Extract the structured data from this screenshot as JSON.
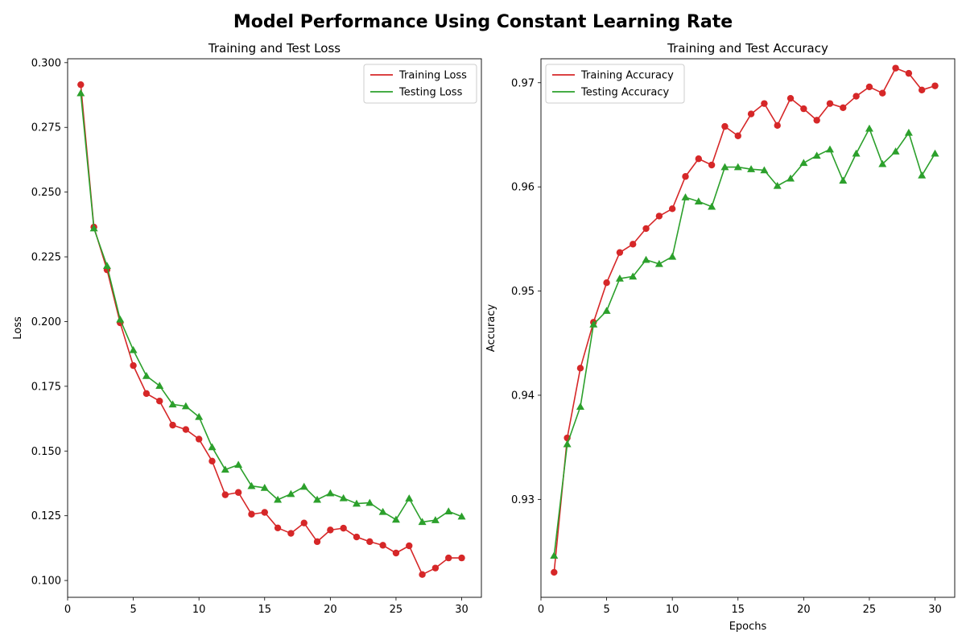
{
  "figure": {
    "suptitle": "Model Performance Using Constant Learning Rate"
  },
  "colors": {
    "training": "#d62728",
    "testing": "#2ca02c"
  },
  "chart_data": [
    {
      "type": "line",
      "title": "Training and Test Loss",
      "xlabel": "",
      "ylabel": "Loss",
      "xlim": [
        0,
        31.5
      ],
      "ylim": [
        0.0935,
        0.3015
      ],
      "xticks": [
        0,
        5,
        10,
        15,
        20,
        25,
        30
      ],
      "yticks": [
        0.1,
        0.125,
        0.15,
        0.175,
        0.2,
        0.225,
        0.25,
        0.275,
        0.3
      ],
      "ytick_labels": [
        "0.100",
        "0.125",
        "0.150",
        "0.175",
        "0.200",
        "0.225",
        "0.250",
        "0.275",
        "0.300"
      ],
      "legend_position": "top-right",
      "grid": false,
      "x": [
        1,
        2,
        3,
        4,
        5,
        6,
        7,
        8,
        9,
        10,
        11,
        12,
        13,
        14,
        15,
        16,
        17,
        18,
        19,
        20,
        21,
        22,
        23,
        24,
        25,
        26,
        27,
        28,
        29,
        30
      ],
      "series": [
        {
          "name": "Training Loss",
          "marker": "circle",
          "color": "#d62728",
          "values": [
            0.2915,
            0.2365,
            0.22,
            0.1995,
            0.183,
            0.1722,
            0.1693,
            0.16,
            0.1583,
            0.1546,
            0.1461,
            0.1331,
            0.134,
            0.1256,
            0.1263,
            0.1203,
            0.1182,
            0.1222,
            0.115,
            0.1195,
            0.1202,
            0.1168,
            0.115,
            0.1136,
            0.1106,
            0.1134,
            0.1023,
            0.1048,
            0.1087,
            0.1087
          ]
        },
        {
          "name": "Testing Loss",
          "marker": "triangle",
          "color": "#2ca02c",
          "values": [
            0.2882,
            0.236,
            0.2215,
            0.2008,
            0.189,
            0.179,
            0.1752,
            0.168,
            0.1673,
            0.1632,
            0.1515,
            0.1428,
            0.1447,
            0.1365,
            0.1358,
            0.1312,
            0.1334,
            0.1362,
            0.1312,
            0.1337,
            0.1318,
            0.1297,
            0.13,
            0.1265,
            0.1235,
            0.1317,
            0.1226,
            0.1233,
            0.1267,
            0.1247
          ]
        }
      ]
    },
    {
      "type": "line",
      "title": "Training and Test Accuracy",
      "xlabel": "Epochs",
      "ylabel": "Accuracy",
      "xlim": [
        0,
        31.5
      ],
      "ylim": [
        0.9206,
        0.9723
      ],
      "xticks": [
        0,
        5,
        10,
        15,
        20,
        25,
        30
      ],
      "yticks": [
        0.93,
        0.94,
        0.95,
        0.96,
        0.97
      ],
      "ytick_labels": [
        "0.93",
        "0.94",
        "0.95",
        "0.96",
        "0.97"
      ],
      "legend_position": "top-left",
      "grid": false,
      "x": [
        1,
        2,
        3,
        4,
        5,
        6,
        7,
        8,
        9,
        10,
        11,
        12,
        13,
        14,
        15,
        16,
        17,
        18,
        19,
        20,
        21,
        22,
        23,
        24,
        25,
        26,
        27,
        28,
        29,
        30
      ],
      "series": [
        {
          "name": "Training Accuracy",
          "marker": "circle",
          "color": "#d62728",
          "values": [
            0.923,
            0.9359,
            0.9426,
            0.947,
            0.9508,
            0.9537,
            0.9545,
            0.956,
            0.9572,
            0.9579,
            0.961,
            0.9627,
            0.9621,
            0.9658,
            0.9649,
            0.967,
            0.968,
            0.9659,
            0.9685,
            0.9675,
            0.9664,
            0.968,
            0.9676,
            0.9687,
            0.9696,
            0.969,
            0.9714,
            0.9709,
            0.9693,
            0.9697
          ]
        },
        {
          "name": "Testing Accuracy",
          "marker": "triangle",
          "color": "#2ca02c",
          "values": [
            0.9246,
            0.9353,
            0.9389,
            0.9468,
            0.9481,
            0.9512,
            0.9514,
            0.953,
            0.9526,
            0.9533,
            0.959,
            0.9586,
            0.9581,
            0.9619,
            0.9619,
            0.9617,
            0.9616,
            0.9601,
            0.9608,
            0.9623,
            0.963,
            0.9636,
            0.9606,
            0.9632,
            0.9656,
            0.9622,
            0.9634,
            0.9652,
            0.9611,
            0.9632
          ]
        }
      ]
    }
  ]
}
